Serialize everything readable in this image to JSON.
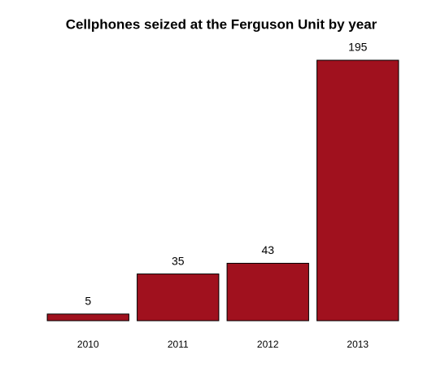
{
  "chart_data": {
    "type": "bar",
    "title": "Cellphones seized at the Ferguson Unit by year",
    "categories": [
      "2010",
      "2011",
      "2012",
      "2013"
    ],
    "values": [
      5,
      35,
      43,
      195
    ],
    "color": "#a0111e"
  }
}
